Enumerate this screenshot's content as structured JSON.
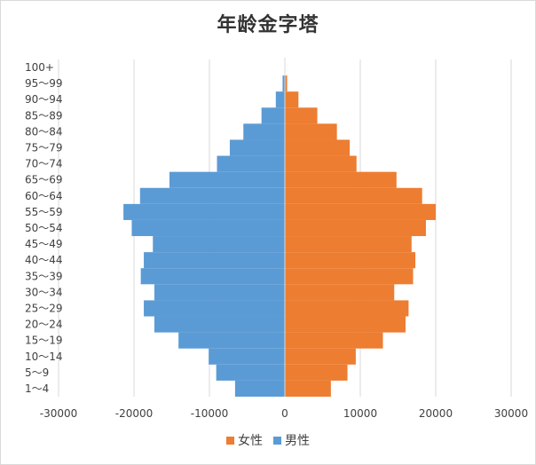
{
  "chart_data": {
    "type": "bar",
    "orientation": "horizontal",
    "title": "年龄金字塔",
    "categories": [
      "1～4",
      "5～9",
      "10～14",
      "15～19",
      "20～24",
      "25～29",
      "30～34",
      "35～39",
      "40～44",
      "45～49",
      "50～54",
      "55～59",
      "60～64",
      "65～69",
      "70～74",
      "75～79",
      "80～84",
      "85～89",
      "90～94",
      "95～99",
      "100+"
    ],
    "series": [
      {
        "name": "女性",
        "color": "#ed7d31",
        "values": [
          6100,
          8300,
          9400,
          13000,
          16000,
          16400,
          14500,
          17000,
          17300,
          16800,
          18700,
          20000,
          18200,
          14800,
          9500,
          8600,
          6900,
          4300,
          1800,
          300,
          50
        ]
      },
      {
        "name": "男性",
        "color": "#5b9bd5",
        "values": [
          -6600,
          -9100,
          -10100,
          -14100,
          -17300,
          -18700,
          -17300,
          -19100,
          -18700,
          -17500,
          -20300,
          -21400,
          -19200,
          -15300,
          -9000,
          -7300,
          -5500,
          -3100,
          -1200,
          -300,
          -50
        ]
      }
    ],
    "xlim": [
      -30000,
      30000
    ],
    "xticks": [
      -30000,
      -20000,
      -10000,
      0,
      10000,
      20000,
      30000
    ],
    "xtick_labels": [
      "-30000",
      "-20000",
      "-10000",
      "0",
      "10000",
      "20000",
      "30000"
    ],
    "grid": "vertical",
    "legend_position": "bottom",
    "legend": [
      "女性",
      "男性"
    ]
  }
}
